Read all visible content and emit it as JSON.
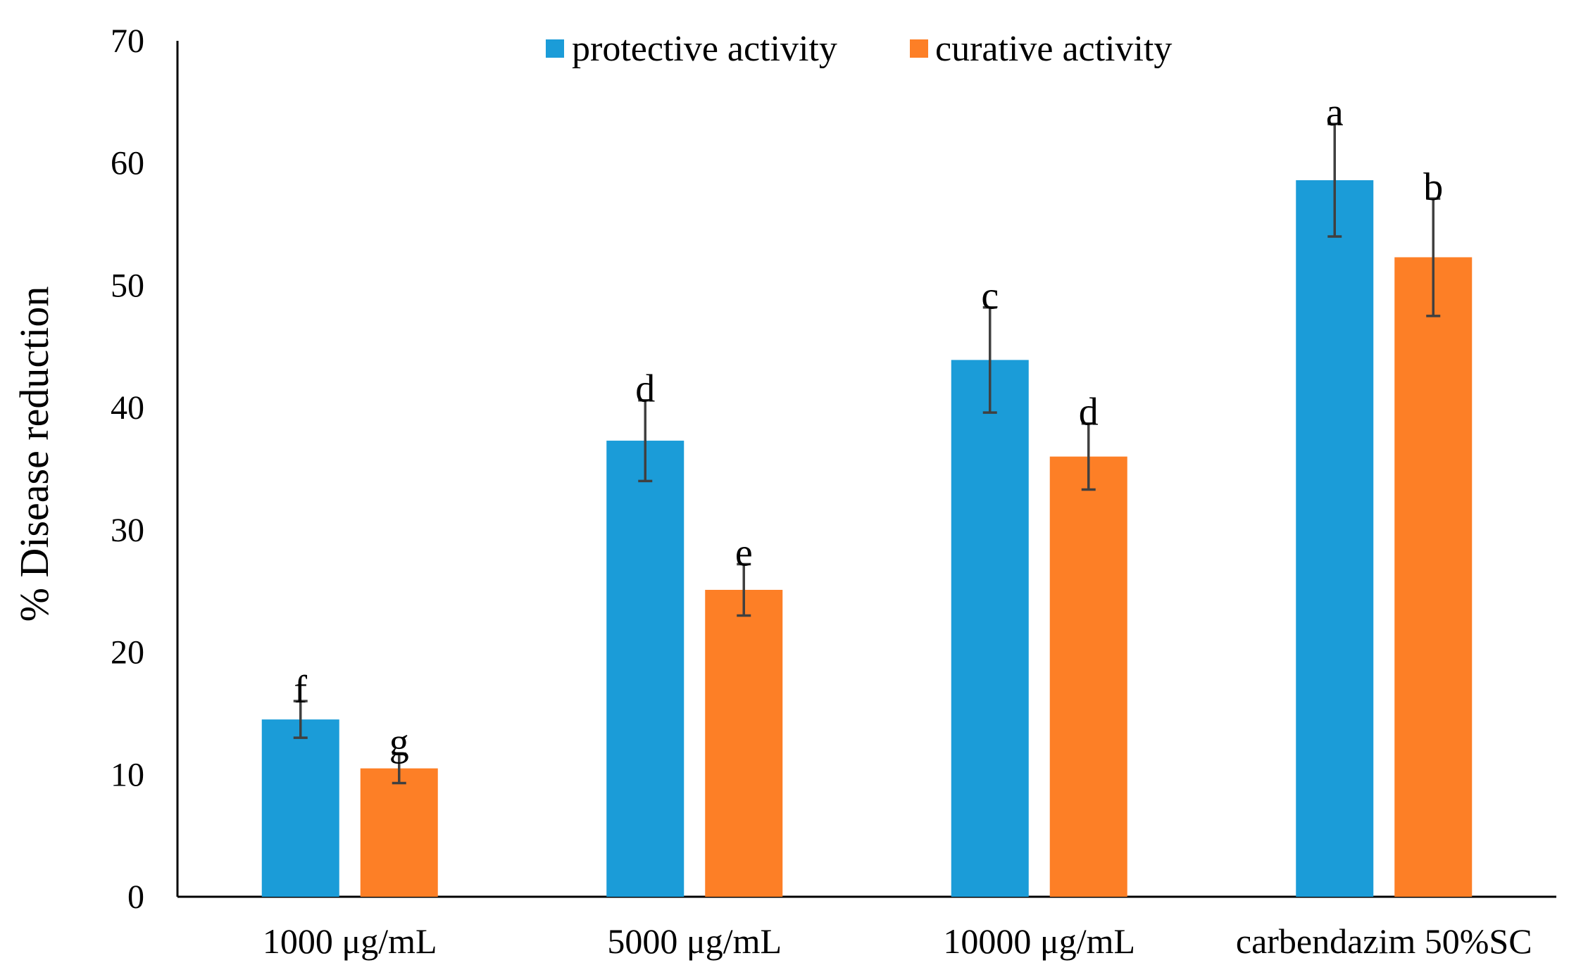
{
  "chart_data": {
    "type": "bar",
    "title": "",
    "xlabel": "",
    "ylabel": "% Disease reduction",
    "ylim": [
      0,
      70
    ],
    "yticks": [
      0,
      10,
      20,
      30,
      40,
      50,
      60,
      70
    ],
    "grid": false,
    "legend_position": "top-center",
    "categories": [
      "1000 μg/mL",
      "5000 μg/mL",
      "10000 μg/mL",
      "carbendazim 50%SC"
    ],
    "series": [
      {
        "name": "protective activity",
        "color": "#1b9cd8",
        "values": [
          14.5,
          37.3,
          43.9,
          58.6
        ],
        "errors": [
          1.5,
          3.3,
          4.3,
          4.6
        ],
        "significance": [
          "f",
          "d",
          "c",
          "a"
        ]
      },
      {
        "name": "curative activity",
        "color": "#fd7f26",
        "values": [
          10.5,
          25.1,
          36.0,
          52.3
        ],
        "errors": [
          1.2,
          2.1,
          2.7,
          4.8
        ],
        "significance": [
          "g",
          "e",
          "d",
          "b"
        ]
      }
    ]
  }
}
